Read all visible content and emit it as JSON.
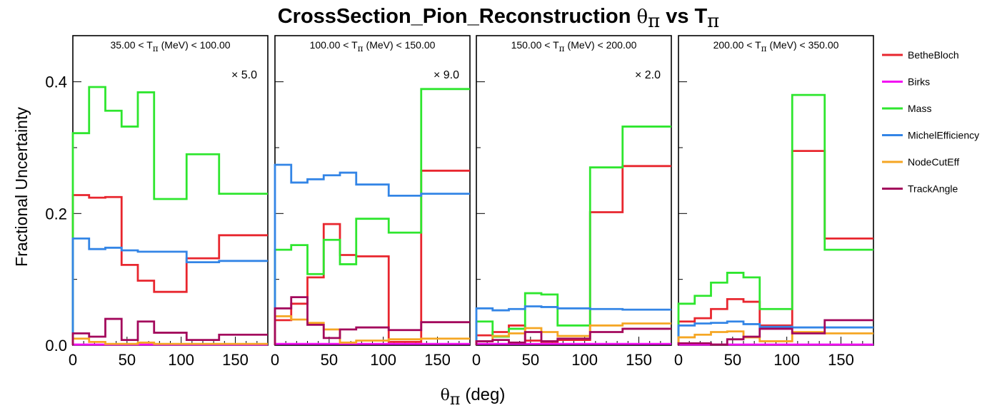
{
  "chart_data": {
    "type": "line",
    "title": "CrossSection_Pion_Reconstruction θ_π vs T_π",
    "title_main": "CrossSection_Pion_Reconstruction",
    "title_theta": "θ",
    "title_pi": "π",
    "title_vs": "vs",
    "title_T": "T",
    "ylabel": "Fractional Uncertainty",
    "xlabel_sym": "θ",
    "xlabel_sub": "π",
    "xlabel_unit": "(deg)",
    "ylim": [
      0,
      0.47
    ],
    "xlim": [
      0,
      180
    ],
    "yticks": [
      "0.0",
      "0.2",
      "0.4"
    ],
    "xticks": [
      "0",
      "50",
      "100",
      "150"
    ],
    "grid": false,
    "legend_position": "right",
    "bin_edges": [
      0,
      15,
      30,
      45,
      60,
      75,
      105,
      135,
      180
    ],
    "series_meta": [
      {
        "name": "BetheBloch",
        "color": "#e8262e"
      },
      {
        "name": "Birks",
        "color": "#f20df2"
      },
      {
        "name": "Mass",
        "color": "#2ee62e"
      },
      {
        "name": "MichelEfficiency",
        "color": "#3385e6"
      },
      {
        "name": "NodeCutEff",
        "color": "#f5a623"
      },
      {
        "name": "TrackAngle",
        "color": "#a3085c"
      }
    ],
    "panels": [
      {
        "label_lo": "35.00 < T",
        "label_sub": "π",
        "label_hi": "(MeV) < 100.00",
        "scale": "× 5.0",
        "series": [
          {
            "name": "BetheBloch",
            "values": [
              0.228,
              0.224,
              0.225,
              0.122,
              0.098,
              0.081,
              0.132,
              0.167
            ]
          },
          {
            "name": "Birks",
            "values": [
              0.001,
              0.001,
              0.001,
              0.001,
              0.001,
              0.001,
              0.001,
              0.001
            ]
          },
          {
            "name": "Mass",
            "values": [
              0.322,
              0.392,
              0.356,
              0.332,
              0.384,
              0.222,
              0.29,
              0.23
            ]
          },
          {
            "name": "MichelEfficiency",
            "values": [
              0.162,
              0.146,
              0.148,
              0.144,
              0.142,
              0.142,
              0.126,
              0.128
            ]
          },
          {
            "name": "NodeCutEff",
            "values": [
              0.01,
              0.005,
              0.002,
              0.002,
              0.004,
              0.002,
              0.002,
              0.002
            ]
          },
          {
            "name": "TrackAngle",
            "values": [
              0.018,
              0.013,
              0.04,
              0.008,
              0.036,
              0.019,
              0.008,
              0.016
            ]
          }
        ]
      },
      {
        "label_lo": "100.00 < T",
        "label_sub": "π",
        "label_hi": "(MeV) < 150.00",
        "scale": "× 9.0",
        "series": [
          {
            "name": "BetheBloch",
            "values": [
              0.038,
              0.063,
              0.103,
              0.184,
              0.137,
              0.135,
              0.005,
              0.265
            ]
          },
          {
            "name": "Birks",
            "values": [
              0.002,
              0.002,
              0.002,
              0.002,
              0.002,
              0.002,
              0.002,
              0.002
            ]
          },
          {
            "name": "Mass",
            "values": [
              0.145,
              0.152,
              0.108,
              0.16,
              0.123,
              0.192,
              0.171,
              0.389
            ]
          },
          {
            "name": "MichelEfficiency",
            "values": [
              0.274,
              0.247,
              0.252,
              0.258,
              0.262,
              0.244,
              0.227,
              0.23
            ]
          },
          {
            "name": "NodeCutEff",
            "values": [
              0.044,
              0.039,
              0.034,
              0.024,
              0.004,
              0.007,
              0.009,
              0.01
            ]
          },
          {
            "name": "TrackAngle",
            "values": [
              0.056,
              0.073,
              0.031,
              0.011,
              0.024,
              0.027,
              0.023,
              0.035
            ]
          }
        ]
      },
      {
        "label_lo": "150.00 < T",
        "label_sub": "π",
        "label_hi": "(MeV) < 200.00",
        "scale": "× 2.0",
        "series": [
          {
            "name": "BetheBloch",
            "values": [
              0.015,
              0.02,
              0.03,
              0.007,
              0.005,
              0.008,
              0.202,
              0.272
            ]
          },
          {
            "name": "Birks",
            "values": [
              0.002,
              0.002,
              0.002,
              0.002,
              0.002,
              0.002,
              0.002,
              0.002
            ]
          },
          {
            "name": "Mass",
            "values": [
              0.036,
              0.013,
              0.025,
              0.079,
              0.077,
              0.03,
              0.27,
              0.332
            ]
          },
          {
            "name": "MichelEfficiency",
            "values": [
              0.056,
              0.053,
              0.055,
              0.059,
              0.058,
              0.056,
              0.055,
              0.054
            ]
          },
          {
            "name": "NodeCutEff",
            "values": [
              0.006,
              0.014,
              0.018,
              0.026,
              0.02,
              0.014,
              0.03,
              0.033
            ]
          },
          {
            "name": "TrackAngle",
            "values": [
              0.006,
              0.008,
              0.004,
              0.02,
              0.006,
              0.01,
              0.02,
              0.025
            ]
          }
        ]
      },
      {
        "label_lo": "200.00 < T",
        "label_sub": "π",
        "label_hi": "(MeV) < 350.00",
        "scale": "",
        "series": [
          {
            "name": "BetheBloch",
            "values": [
              0.036,
              0.041,
              0.055,
              0.07,
              0.066,
              0.03,
              0.295,
              0.162
            ]
          },
          {
            "name": "Birks",
            "values": [
              0.001,
              0.001,
              0.001,
              0.001,
              0.001,
              0.001,
              0.001,
              0.001
            ]
          },
          {
            "name": "Mass",
            "values": [
              0.063,
              0.075,
              0.095,
              0.11,
              0.103,
              0.055,
              0.38,
              0.145
            ]
          },
          {
            "name": "MichelEfficiency",
            "values": [
              0.03,
              0.033,
              0.034,
              0.036,
              0.032,
              0.028,
              0.027,
              0.027
            ]
          },
          {
            "name": "NodeCutEff",
            "values": [
              0.012,
              0.016,
              0.02,
              0.021,
              0.012,
              0.006,
              0.02,
              0.018
            ]
          },
          {
            "name": "TrackAngle",
            "values": [
              0.003,
              0.003,
              0.001,
              0.009,
              0.013,
              0.025,
              0.018,
              0.038
            ]
          }
        ]
      }
    ]
  }
}
